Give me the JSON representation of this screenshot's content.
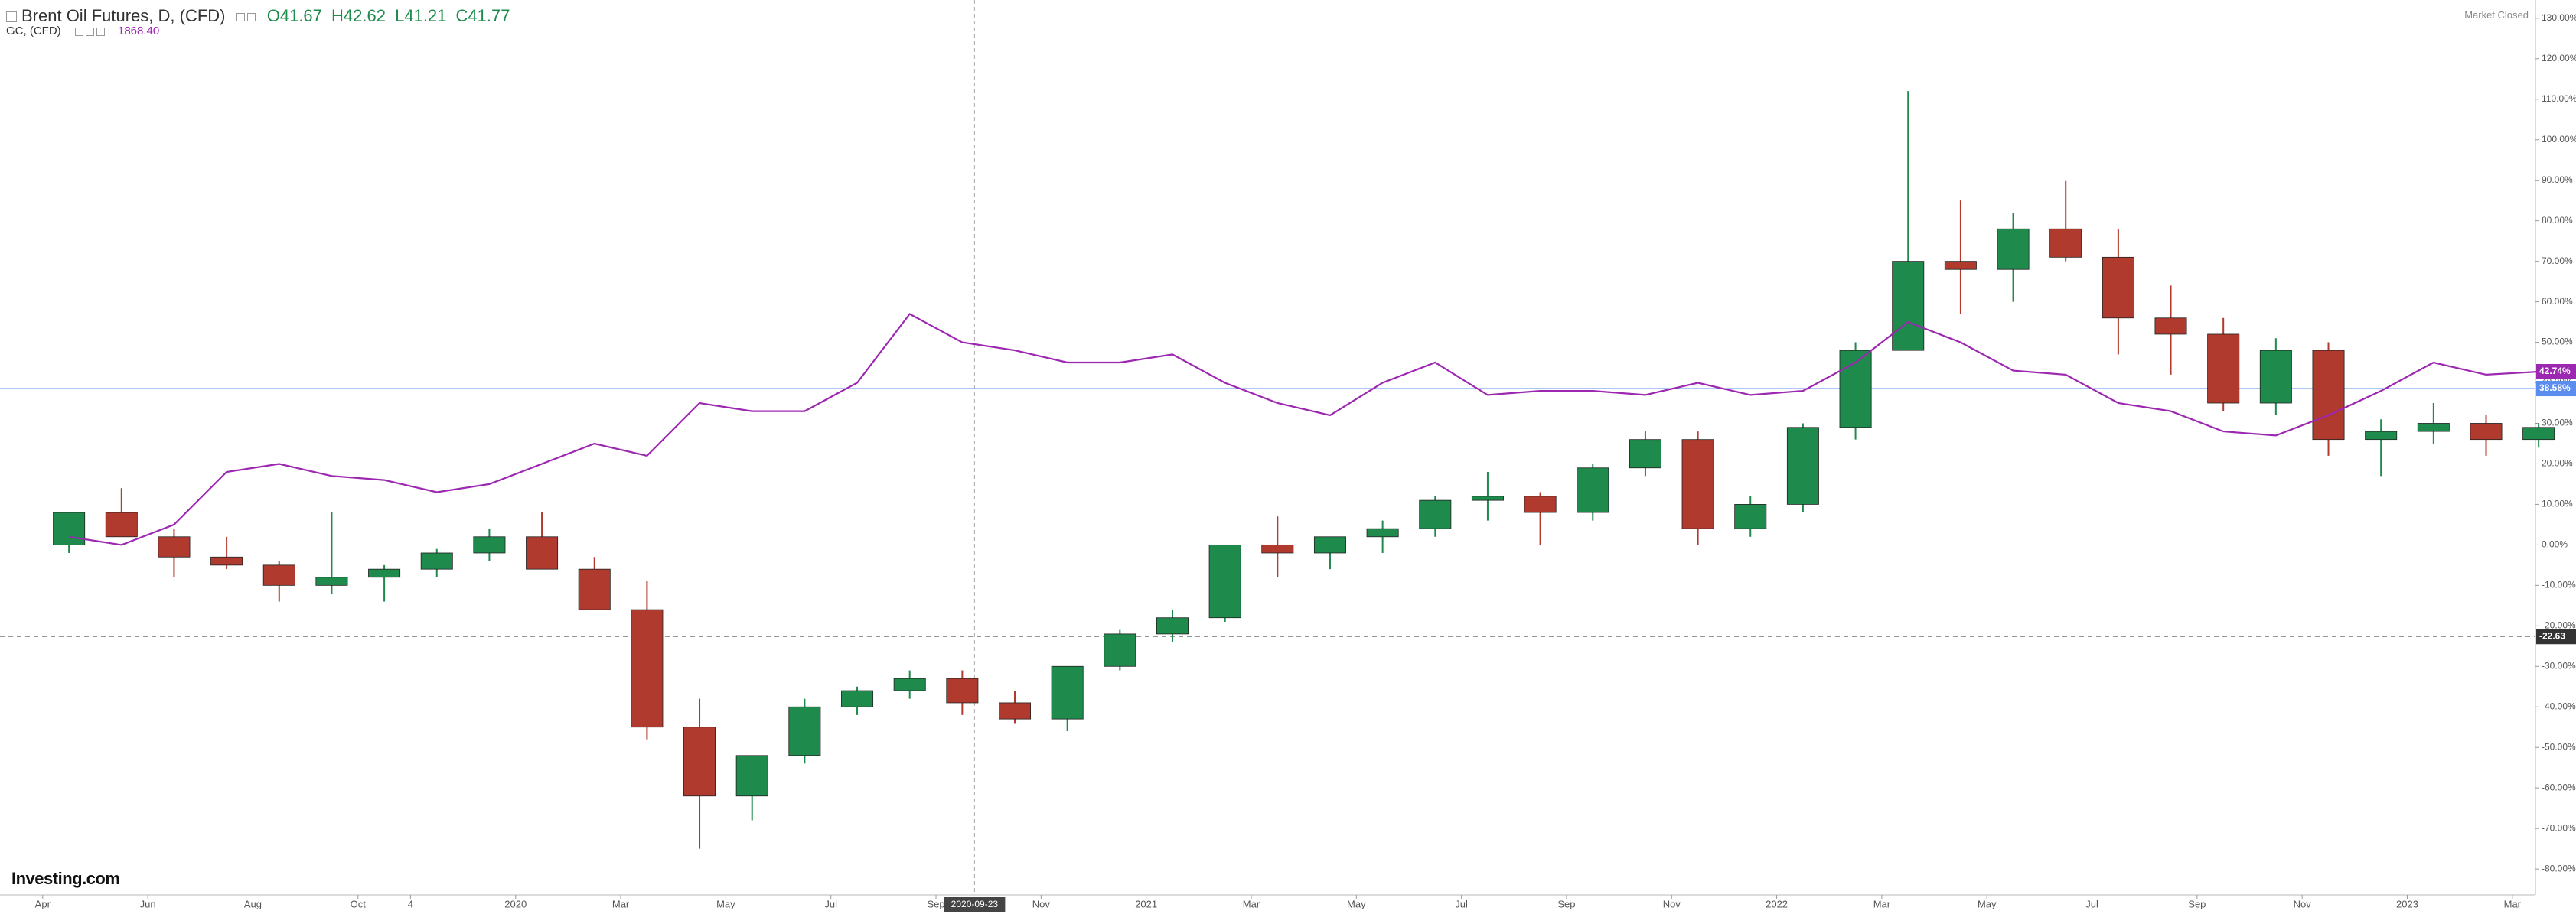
{
  "chart_data": {
    "type": "candlestick",
    "legend_values": [
      "O41.67",
      "H42.62",
      "L41.21",
      "C41.77"
    ],
    "status": "Market Closed",
    "logo": "Investing.com",
    "x": [
      "2019-04",
      "2019-05",
      "2019-06",
      "2019-07",
      "2019-08",
      "2019-09",
      "2019-10",
      "2019-11",
      "2019-12",
      "2020-01",
      "2020-02",
      "2020-03",
      "2020-04",
      "2020-05",
      "2020-06",
      "2020-07",
      "2020-08",
      "2020-09",
      "2020-10",
      "2020-11",
      "2020-12",
      "2021-01",
      "2021-02",
      "2021-03",
      "2021-04",
      "2021-05",
      "2021-06",
      "2021-07",
      "2021-08",
      "2021-09",
      "2021-10",
      "2021-11",
      "2021-12",
      "2022-01",
      "2022-02",
      "2022-03",
      "2022-04",
      "2022-05",
      "2022-06",
      "2022-07",
      "2022-08",
      "2022-09",
      "2022-10",
      "2022-11",
      "2022-12",
      "2023-01",
      "2023-02",
      "2023-03"
    ],
    "series": [
      {
        "name": "Brent Oil Futures, D, (CFD)",
        "up_color": "#1e8a4c",
        "down_color": "#b03a2e",
        "open": [
          0,
          8,
          2,
          -3,
          -5,
          -10,
          -8,
          -6,
          -2,
          2,
          -6,
          -16,
          -45,
          -62,
          -52,
          -40,
          -36,
          -33,
          -39,
          -43,
          -30,
          -22,
          -18,
          0,
          -2,
          2,
          4,
          11,
          12,
          8,
          19,
          26,
          4,
          10,
          29,
          48,
          70,
          68,
          78,
          71,
          56,
          52,
          35,
          48,
          26,
          28,
          30,
          26
        ],
        "high": [
          8,
          14,
          4,
          2,
          -4,
          8,
          -5,
          -1,
          4,
          8,
          -3,
          -9,
          -38,
          -52,
          -38,
          -35,
          -31,
          -31,
          -36,
          -30,
          -21,
          -16,
          0,
          7,
          2,
          6,
          12,
          18,
          13,
          20,
          28,
          28,
          12,
          30,
          50,
          112,
          85,
          82,
          90,
          78,
          64,
          56,
          51,
          50,
          31,
          35,
          32,
          30
        ],
        "low": [
          -2,
          2,
          -8,
          -6,
          -14,
          -12,
          -14,
          -8,
          -4,
          -6,
          -16,
          -48,
          -75,
          -68,
          -54,
          -42,
          -38,
          -42,
          -44,
          -46,
          -31,
          -24,
          -19,
          -8,
          -6,
          -2,
          2,
          6,
          0,
          6,
          17,
          0,
          2,
          8,
          26,
          48,
          57,
          60,
          70,
          47,
          42,
          33,
          32,
          22,
          17,
          25,
          22,
          24
        ],
        "close": [
          8,
          2,
          -3,
          -5,
          -10,
          -8,
          -6,
          -2,
          2,
          -6,
          -16,
          -45,
          -62,
          -52,
          -40,
          -36,
          -33,
          -39,
          -43,
          -30,
          -22,
          -18,
          0,
          -2,
          2,
          4,
          11,
          12,
          8,
          19,
          26,
          4,
          10,
          29,
          48,
          70,
          68,
          78,
          71,
          56,
          52,
          35,
          48,
          26,
          28,
          30,
          26,
          29
        ]
      },
      {
        "name": "GC, (CFD)",
        "type": "line",
        "color": "#9c27b0",
        "last_label": "1868.40",
        "values": [
          2,
          0,
          5,
          18,
          20,
          17,
          16,
          13,
          15,
          20,
          25,
          22,
          35,
          33,
          33,
          40,
          57,
          50,
          48,
          45,
          45,
          47,
          40,
          35,
          32,
          40,
          45,
          37,
          38,
          38,
          37,
          40,
          37,
          38,
          45,
          55,
          50,
          43,
          42,
          35,
          33,
          28,
          27,
          32,
          38,
          45,
          42,
          42.74
        ]
      }
    ],
    "ylim": [
      -86.4,
      134.5
    ],
    "yticks": [
      {
        "value": 130,
        "label": "130.00%"
      },
      {
        "value": 120,
        "label": "120.00%"
      },
      {
        "value": 110,
        "label": "110.00%"
      },
      {
        "value": 100,
        "label": "100.00%"
      },
      {
        "value": 90,
        "label": "90.00%"
      },
      {
        "value": 80,
        "label": "80.00%"
      },
      {
        "value": 70,
        "label": "70.00%"
      },
      {
        "value": 60,
        "label": "60.00%"
      },
      {
        "value": 50,
        "label": "50.00%"
      },
      {
        "value": 40,
        "label": "40.00%"
      },
      {
        "value": 30,
        "label": "30.00%"
      },
      {
        "value": 20,
        "label": "20.00%"
      },
      {
        "value": 10,
        "label": "10.00%"
      },
      {
        "value": 0,
        "label": "0.00%"
      },
      {
        "value": -10,
        "label": "-10.00%"
      },
      {
        "value": -20,
        "label": "-20.00%"
      },
      {
        "value": -30,
        "label": "-30.00%"
      },
      {
        "value": -40,
        "label": "-40.00%"
      },
      {
        "value": -50,
        "label": "-50.00%"
      },
      {
        "value": -60,
        "label": "-60.00%"
      },
      {
        "value": -70,
        "label": "-70.00%"
      },
      {
        "value": -80,
        "label": "-80.00%"
      }
    ],
    "xticks": [
      {
        "value": "2019-04",
        "label": "Apr"
      },
      {
        "value": "2019-06",
        "label": "Jun"
      },
      {
        "value": "2019-08",
        "label": "Aug"
      },
      {
        "value": "2019-10",
        "label": "Oct"
      },
      {
        "value": "2019-11",
        "label": "4"
      },
      {
        "value": "2020-01",
        "label": "2020"
      },
      {
        "value": "2020-03",
        "label": "Mar"
      },
      {
        "value": "2020-05",
        "label": "May"
      },
      {
        "value": "2020-07",
        "label": "Jul"
      },
      {
        "value": "2020-09",
        "label": "Sep"
      },
      {
        "value": "2020-11",
        "label": "Nov"
      },
      {
        "value": "2021-01",
        "label": "2021"
      },
      {
        "value": "2021-03",
        "label": "Mar"
      },
      {
        "value": "2021-05",
        "label": "May"
      },
      {
        "value": "2021-07",
        "label": "Jul"
      },
      {
        "value": "2021-09",
        "label": "Sep"
      },
      {
        "value": "2021-11",
        "label": "Nov"
      },
      {
        "value": "2022-01",
        "label": "2022"
      },
      {
        "value": "2022-03",
        "label": "Mar"
      },
      {
        "value": "2022-05",
        "label": "May"
      },
      {
        "value": "2022-07",
        "label": "Jul"
      },
      {
        "value": "2022-09",
        "label": "Sep"
      },
      {
        "value": "2022-11",
        "label": "Nov"
      },
      {
        "value": "2023-01",
        "label": "2023"
      },
      {
        "value": "2023-03",
        "label": "Mar"
      }
    ],
    "crosshair_x": "2020-09-23",
    "markers": [
      {
        "value": 42.74,
        "label": "42.74%",
        "color": "#9c27b0"
      },
      {
        "value": 38.58,
        "label": "38.58%",
        "color": "#5b8def",
        "line": "solid"
      },
      {
        "value": -22.63,
        "label": "-22.63",
        "color": "#333333",
        "line": "dashed"
      }
    ]
  }
}
